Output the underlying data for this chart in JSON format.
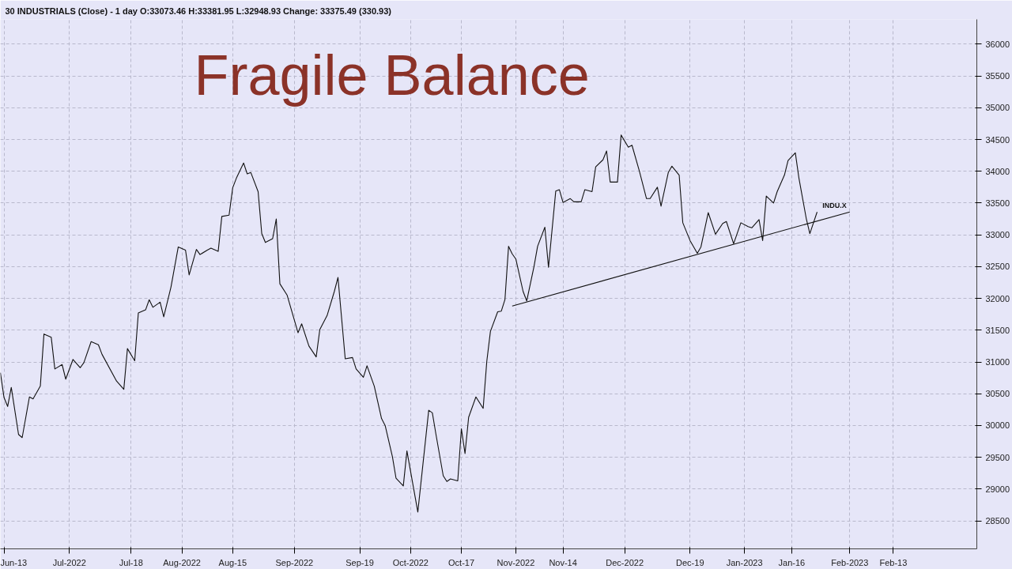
{
  "chart_data": {
    "type": "line",
    "title": "Fragile Balance",
    "subtitle": "30 INDUSTRIALS (Close) - 1 day   O:33073.46   H:33381.95   L:32948.93   Change: 33375.49 (330.93)",
    "xlim": [
      "2022-06-12",
      "2023-03-08"
    ],
    "ylim": [
      28060,
      36390
    ],
    "xticks": [
      {
        "value": "2022-06-13",
        "label": "Jun-13"
      },
      {
        "value": "2022-07-01",
        "label": "Jul-2022"
      },
      {
        "value": "2022-07-18",
        "label": "Jul-18"
      },
      {
        "value": "2022-08-01",
        "label": "Aug-2022"
      },
      {
        "value": "2022-08-15",
        "label": "Aug-15"
      },
      {
        "value": "2022-09-01",
        "label": "Sep-2022"
      },
      {
        "value": "2022-09-19",
        "label": "Sep-19"
      },
      {
        "value": "2022-10-03",
        "label": "Oct-2022"
      },
      {
        "value": "2022-10-17",
        "label": "Oct-17"
      },
      {
        "value": "2022-11-01",
        "label": "Nov-2022"
      },
      {
        "value": "2022-11-14",
        "label": "Nov-14"
      },
      {
        "value": "2022-12-01",
        "label": "Dec-2022"
      },
      {
        "value": "2022-12-19",
        "label": "Dec-19"
      },
      {
        "value": "2023-01-03",
        "label": "Jan-2023"
      },
      {
        "value": "2023-01-16",
        "label": "Jan-16"
      },
      {
        "value": "2023-02-01",
        "label": "Feb-2023"
      },
      {
        "value": "2023-02-13",
        "label": "Feb-13"
      }
    ],
    "yticks": [
      28500,
      29000,
      29500,
      30000,
      30500,
      31000,
      31500,
      32000,
      32500,
      33000,
      33500,
      34000,
      34500,
      35000,
      35500,
      36000
    ],
    "grid": true,
    "line_style": "solid",
    "series": [
      {
        "color": "#111111",
        "x": [
          "2022-06-12",
          "2022-06-13",
          "2022-06-14",
          "2022-06-15",
          "2022-06-17",
          "2022-06-18",
          "2022-06-20",
          "2022-06-21",
          "2022-06-23",
          "2022-06-24",
          "2022-06-26",
          "2022-06-27",
          "2022-06-29",
          "2022-06-30",
          "2022-07-02",
          "2022-07-04",
          "2022-07-05",
          "2022-07-07",
          "2022-07-09",
          "2022-07-10",
          "2022-07-14",
          "2022-07-16",
          "2022-07-17",
          "2022-07-19",
          "2022-07-20",
          "2022-07-22",
          "2022-07-23",
          "2022-07-24",
          "2022-07-26",
          "2022-07-27",
          "2022-07-29",
          "2022-07-31",
          "2022-08-02",
          "2022-08-03",
          "2022-08-05",
          "2022-08-06",
          "2022-08-08",
          "2022-08-09",
          "2022-08-11",
          "2022-08-12",
          "2022-08-14",
          "2022-08-15",
          "2022-08-16",
          "2022-08-18",
          "2022-08-19",
          "2022-08-20",
          "2022-08-22",
          "2022-08-23",
          "2022-08-24",
          "2022-08-26",
          "2022-08-27",
          "2022-08-28",
          "2022-08-30",
          "2022-09-02",
          "2022-09-03",
          "2022-09-05",
          "2022-09-07",
          "2022-09-08",
          "2022-09-10",
          "2022-09-12",
          "2022-09-13",
          "2022-09-15",
          "2022-09-17",
          "2022-09-18",
          "2022-09-20",
          "2022-09-21",
          "2022-09-23",
          "2022-09-25",
          "2022-09-26",
          "2022-09-28",
          "2022-09-29",
          "2022-10-01",
          "2022-10-02",
          "2022-10-05",
          "2022-10-08",
          "2022-10-09",
          "2022-10-10",
          "2022-10-12",
          "2022-10-13",
          "2022-10-14",
          "2022-10-16",
          "2022-10-17",
          "2022-10-18",
          "2022-10-19",
          "2022-10-21",
          "2022-10-23",
          "2022-10-24",
          "2022-10-25",
          "2022-10-27",
          "2022-10-28",
          "2022-10-29",
          "2022-10-30",
          "2022-10-31",
          "2022-11-01",
          "2022-11-03",
          "2022-11-04",
          "2022-11-06",
          "2022-11-07",
          "2022-11-09",
          "2022-11-10",
          "2022-11-12",
          "2022-11-13",
          "2022-11-14",
          "2022-11-16",
          "2022-11-17",
          "2022-11-19",
          "2022-11-20",
          "2022-11-22",
          "2022-11-23",
          "2022-11-25",
          "2022-11-26",
          "2022-11-27",
          "2022-11-29",
          "2022-11-30",
          "2022-12-02",
          "2022-12-03",
          "2022-12-05",
          "2022-12-07",
          "2022-12-08",
          "2022-12-10",
          "2022-12-11",
          "2022-12-13",
          "2022-12-14",
          "2022-12-16",
          "2022-12-17",
          "2022-12-19",
          "2022-12-21",
          "2022-12-22",
          "2022-12-24",
          "2022-12-26",
          "2022-12-28",
          "2022-12-29",
          "2022-12-31",
          "2023-01-02",
          "2023-01-04",
          "2023-01-05",
          "2023-01-07",
          "2023-01-08",
          "2023-01-09",
          "2023-01-11",
          "2023-01-12",
          "2023-01-14",
          "2023-01-15",
          "2023-01-17",
          "2023-01-18",
          "2023-01-20",
          "2023-01-21",
          "2023-01-23"
        ],
        "values": [
          30830,
          30440,
          30300,
          30600,
          29860,
          29810,
          30450,
          30420,
          30620,
          31440,
          31390,
          30890,
          30960,
          30730,
          31040,
          30910,
          30990,
          31320,
          31270,
          31120,
          30700,
          30570,
          31210,
          31020,
          31770,
          31820,
          31980,
          31860,
          31940,
          31710,
          32180,
          32810,
          32760,
          32370,
          32770,
          32690,
          32760,
          32790,
          32740,
          33290,
          33310,
          33740,
          33890,
          34130,
          33960,
          33980,
          33680,
          33020,
          32880,
          32940,
          33250,
          32230,
          32050,
          31460,
          31600,
          31250,
          31080,
          31510,
          31730,
          32110,
          32330,
          31050,
          31070,
          30890,
          30760,
          30940,
          30620,
          30110,
          30000,
          29510,
          29170,
          29050,
          29600,
          28640,
          30240,
          30200,
          29860,
          29210,
          29120,
          29160,
          29130,
          29950,
          29560,
          30130,
          30450,
          30270,
          31010,
          31480,
          31790,
          31800,
          31980,
          32820,
          32700,
          32620,
          32110,
          31960,
          32500,
          32820,
          33120,
          32490,
          33690,
          33710,
          33510,
          33570,
          33520,
          33520,
          33710,
          33680,
          34070,
          34180,
          34320,
          33830,
          33830,
          34570,
          34380,
          34410,
          34010,
          33570,
          33570,
          33750,
          33450,
          33980,
          34080,
          33940,
          33190,
          32910,
          32710,
          32810,
          33350,
          33010,
          33180,
          33210,
          32860,
          33190,
          33130,
          33110,
          33240,
          32910,
          33610,
          33500,
          33680,
          33940,
          34170,
          34290,
          33890,
          33260,
          33020,
          33360
        ]
      },
      {
        "color": "#111111",
        "x": [
          "2022-10-31",
          "2023-02-01"
        ],
        "values": [
          31880,
          33360
        ]
      }
    ],
    "annotations": [
      "INDU.X"
    ]
  }
}
